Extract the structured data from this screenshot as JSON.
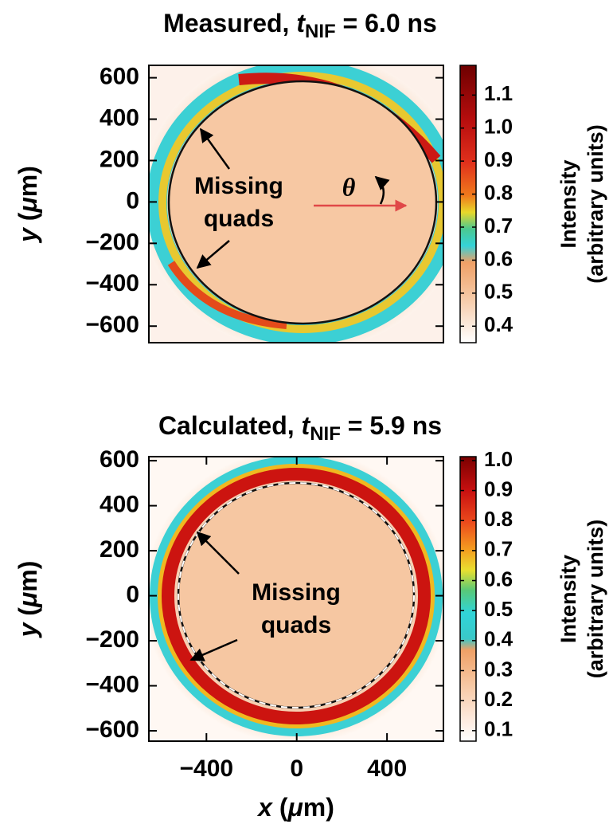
{
  "chart_data": [
    {
      "type": "heatmap",
      "title": [
        "Measured, ",
        "t",
        "NIF",
        " = 6.0 ns"
      ],
      "ylabel": [
        "y",
        " (",
        "μ",
        "m)"
      ],
      "ylim": [
        -680,
        660
      ],
      "yticks": [
        600,
        400,
        200,
        0,
        {
          "value": -200,
          "label": "−200"
        },
        {
          "value": -400,
          "label": "−400"
        },
        {
          "value": -600,
          "label": "−600"
        }
      ],
      "xlim": [
        -655,
        650
      ],
      "annotations": [
        "Missing",
        "quads",
        "θ"
      ],
      "colorbar": {
        "label": [
          "Intensity",
          "(arbitrary units)"
        ],
        "lim": [
          0.35,
          1.19
        ],
        "ticks": [
          1.1,
          {
            "value": 1,
            "label": "1.0"
          },
          0.9,
          0.8,
          0.7,
          0.6,
          0.5,
          0.4
        ]
      }
    },
    {
      "type": "heatmap",
      "title": [
        "Calculated, ",
        "t",
        "NIF",
        " = 5.9 ns"
      ],
      "ylabel": [
        "y",
        " (",
        "μ",
        "m)"
      ],
      "xlabel": [
        "x",
        " (",
        "μ",
        "m)"
      ],
      "ylim": [
        -646,
        618
      ],
      "yticks": [
        600,
        400,
        200,
        0,
        {
          "value": -200,
          "label": "−200"
        },
        {
          "value": -400,
          "label": "−400"
        },
        {
          "value": -600,
          "label": "−600"
        }
      ],
      "xlim": [
        -655,
        650
      ],
      "xticks": [
        {
          "value": -400,
          "label": "−400"
        },
        0,
        400
      ],
      "annotations": [
        "Missing",
        "quads"
      ],
      "colorbar": {
        "label": [
          "Intensity",
          "(arbitrary units)"
        ],
        "lim": [
          0.065,
          1.013
        ],
        "ticks": [
          {
            "value": 1,
            "label": "1.0"
          },
          0.9,
          0.8,
          0.7,
          0.6,
          0.5,
          0.4,
          0.3,
          0.2,
          0.1
        ]
      }
    }
  ]
}
